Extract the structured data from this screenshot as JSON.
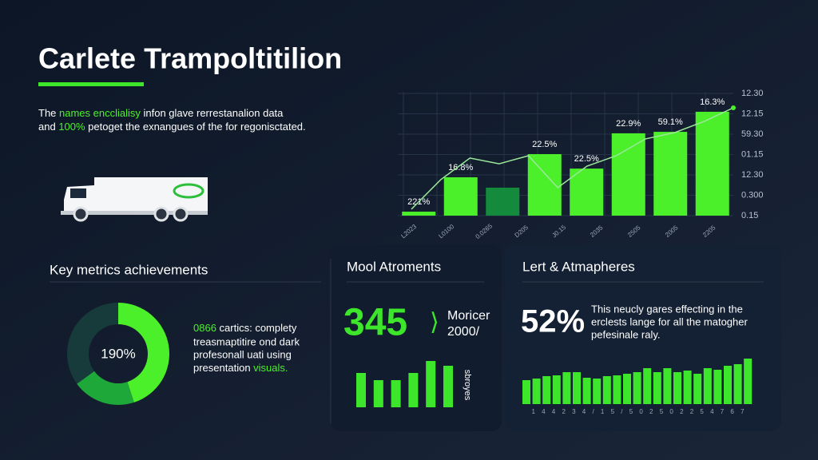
{
  "header": {
    "title": "Carlete Trampoltitilion"
  },
  "intro": {
    "line1": [
      "The ",
      "names encclialisy",
      " infon glave rerrestanalion data"
    ],
    "line2": [
      "and ",
      "100%",
      " petoget the exnangues of the for regonisctated."
    ]
  },
  "main_chart": {
    "ylim": [
      0,
      100
    ],
    "bars": [
      {
        "value": 3.2,
        "tag": "221%",
        "color": "#4cf02a"
      },
      {
        "value": 31,
        "tag": "16.8%",
        "color": "#4cf02a"
      },
      {
        "value": 22.6,
        "tag": null,
        "color": "#138a3c"
      },
      {
        "value": 49.7,
        "tag": "22.5%",
        "color": "#4cf02a"
      },
      {
        "value": 38,
        "tag": "22.5%",
        "color": "#4cf02a"
      },
      {
        "value": 66.5,
        "tag": "22.9%",
        "color": "#4cf02a"
      },
      {
        "value": 67.7,
        "tag": "59.1%",
        "color": "#4cf02a"
      },
      {
        "value": 83.9,
        "tag": "16.3%",
        "color": "#4cf02a"
      }
    ],
    "line": [
      5.2,
      29,
      46.5,
      41.9,
      48.4,
      22.6,
      40,
      48.4,
      62,
      67.1,
      76.1,
      87.1
    ],
    "line_color": "#9be89a",
    "axis_labels": [
      "12.30",
      "12.15",
      "59.30",
      "01.15",
      "12.30",
      "0.300",
      "0.15"
    ],
    "x_labels": [
      "L2023",
      "L0100",
      "0.0265",
      "D205",
      "J0.15",
      "2035",
      "2505",
      "2005",
      "2205"
    ]
  },
  "key_metrics": {
    "title": "Key metrics achievements",
    "donut": {
      "center_label": "190%",
      "segments": [
        {
          "value": 45,
          "color": "#4cf02a"
        },
        {
          "value": 20,
          "color": "#1fa83a"
        },
        {
          "value": 35,
          "color": "#173b3a"
        }
      ]
    },
    "text": [
      [
        "0866",
        " cartics: complety"
      ],
      [
        "treasmaptitire ond dark"
      ],
      [
        "profesonall uati using"
      ],
      [
        "presentation ",
        "visuals."
      ]
    ]
  },
  "panel2": {
    "title": "Mool Atroments",
    "big_number": "345",
    "arrow": "⟩",
    "side_text": [
      "Moricer",
      "2000/"
    ],
    "vertical_text": "sbroyes",
    "ylim": [
      0,
      60
    ],
    "values": [
      43,
      34,
      34,
      43,
      58,
      52
    ],
    "color": "#3de62a"
  },
  "panel3": {
    "title": "Lert & Atmapheres",
    "big_number": "52%",
    "text": [
      "This neucly gares effecting in the",
      "erclests lange for all the matogher",
      "pefesinale raly."
    ],
    "ylim": [
      0,
      60
    ],
    "values": [
      30,
      32,
      35,
      36,
      40,
      40,
      33,
      32,
      35,
      36,
      38,
      40,
      45,
      40,
      45,
      40,
      42,
      38,
      45,
      43,
      48,
      50,
      57
    ],
    "color": "#3de62a",
    "tick_text": "1 4 4 2 3 4 / 1 5 / 5 0 2 5 0 2 2 5 4 7 6 7"
  }
}
